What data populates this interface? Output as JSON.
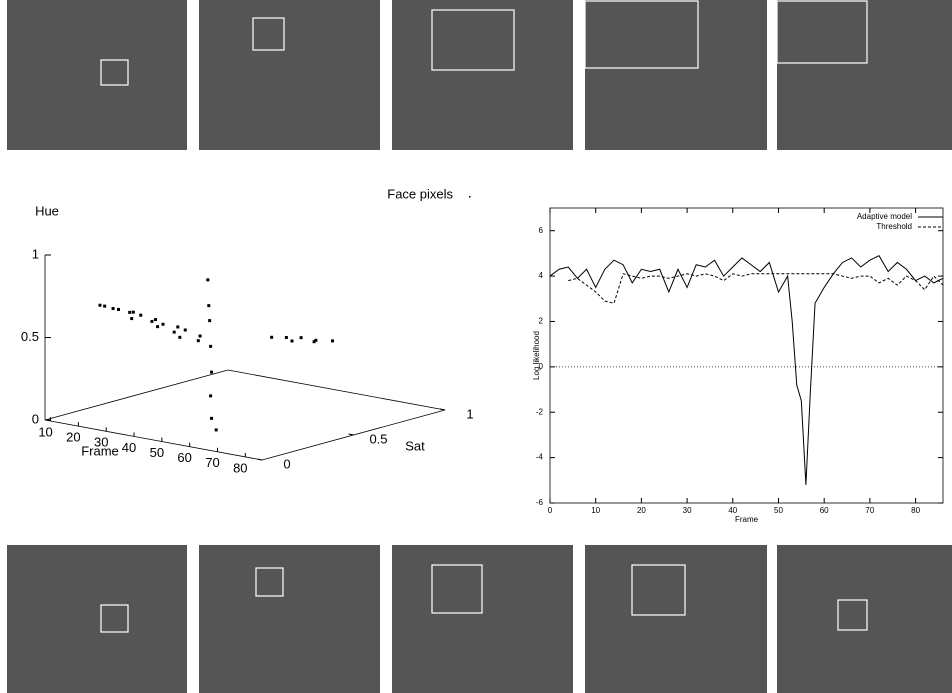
{
  "chart_data": [
    {
      "type": "scatter3d",
      "title": "Face pixels",
      "xlabel": "Frame",
      "zlabel": "Sat",
      "ylabel": "Hue",
      "xlim": [
        8,
        86
      ],
      "xticks": [
        10,
        20,
        30,
        40,
        50,
        60,
        70,
        80
      ],
      "zlim": [
        0,
        1
      ],
      "zticks": [
        0,
        0.5,
        1
      ],
      "ylim": [
        0,
        1
      ],
      "yticks": [
        0,
        0.5,
        1
      ],
      "series": [
        {
          "name": "Face pixels",
          "color": "#000000",
          "x": [
            10,
            13,
            16,
            18,
            20,
            22,
            24,
            26,
            28,
            30,
            32,
            34,
            36,
            38,
            40,
            42,
            44,
            46,
            50,
            52,
            54,
            56,
            58,
            60,
            62,
            56,
            57,
            56,
            57,
            58,
            57,
            58,
            59
          ],
          "z": [
            0.27,
            0.25,
            0.28,
            0.22,
            0.3,
            0.25,
            0.28,
            0.2,
            0.3,
            0.25,
            0.28,
            0.22,
            0.3,
            0.25,
            0.28,
            0.22,
            0.3,
            0.26,
            0.6,
            0.65,
            0.7,
            0.62,
            0.72,
            0.68,
            0.75,
            0.16,
            0.15,
            0.17,
            0.16,
            0.15,
            0.16,
            0.15,
            0.16
          ],
          "values": [
            0.62,
            0.63,
            0.61,
            0.64,
            0.6,
            0.62,
            0.6,
            0.61,
            0.58,
            0.59,
            0.57,
            0.58,
            0.56,
            0.55,
            0.56,
            0.54,
            0.53,
            0.52,
            0.45,
            0.44,
            0.43,
            0.44,
            0.42,
            0.43,
            0.42,
            0.95,
            0.8,
            0.7,
            0.55,
            0.4,
            0.25,
            0.12,
            0.05
          ]
        }
      ]
    },
    {
      "type": "line",
      "xlabel": "Frame",
      "ylabel": "Log likelihood",
      "xlim": [
        0,
        86
      ],
      "xticks": [
        0,
        10,
        20,
        30,
        40,
        50,
        60,
        70,
        80
      ],
      "ylim": [
        -6,
        7
      ],
      "yticks": [
        -6,
        -4,
        -2,
        0,
        2,
        4,
        6
      ],
      "reference_line": 0,
      "x": [
        0,
        2,
        4,
        6,
        8,
        10,
        12,
        14,
        16,
        18,
        20,
        22,
        24,
        26,
        28,
        30,
        32,
        34,
        36,
        38,
        40,
        42,
        44,
        46,
        48,
        50,
        52,
        53,
        54,
        55,
        56,
        57,
        58,
        60,
        62,
        64,
        66,
        68,
        70,
        72,
        74,
        76,
        78,
        80,
        82,
        84,
        86
      ],
      "series": [
        {
          "name": "Adaptive model",
          "color": "#000000",
          "dash": false,
          "values": [
            4.0,
            4.3,
            4.4,
            3.9,
            4.3,
            3.5,
            4.3,
            4.7,
            4.5,
            3.7,
            4.3,
            4.2,
            4.3,
            3.3,
            4.3,
            3.5,
            4.5,
            4.4,
            4.7,
            4.0,
            4.4,
            4.8,
            4.5,
            4.2,
            4.6,
            3.3,
            4.0,
            2.0,
            -0.8,
            -1.5,
            -5.2,
            -1.0,
            2.8,
            3.5,
            4.1,
            4.6,
            4.8,
            4.4,
            4.7,
            4.9,
            4.2,
            4.6,
            4.3,
            3.8,
            4.0,
            3.7,
            3.9
          ]
        },
        {
          "name": "Threshold",
          "color": "#000000",
          "dash": true,
          "values": [
            null,
            null,
            3.8,
            3.9,
            3.6,
            3.3,
            2.9,
            2.8,
            4.1,
            4.0,
            3.9,
            4.0,
            4.0,
            3.9,
            4.0,
            4.1,
            4.0,
            4.1,
            4.0,
            3.8,
            4.1,
            4.0,
            4.1,
            4.1,
            4.1,
            4.1,
            4.1,
            4.1,
            4.1,
            4.1,
            4.1,
            4.1,
            4.1,
            4.1,
            4.1,
            4.0,
            3.9,
            4.0,
            4.0,
            3.7,
            3.9,
            3.6,
            4.0,
            3.8,
            3.4,
            4.0,
            3.6
          ]
        }
      ]
    }
  ]
}
